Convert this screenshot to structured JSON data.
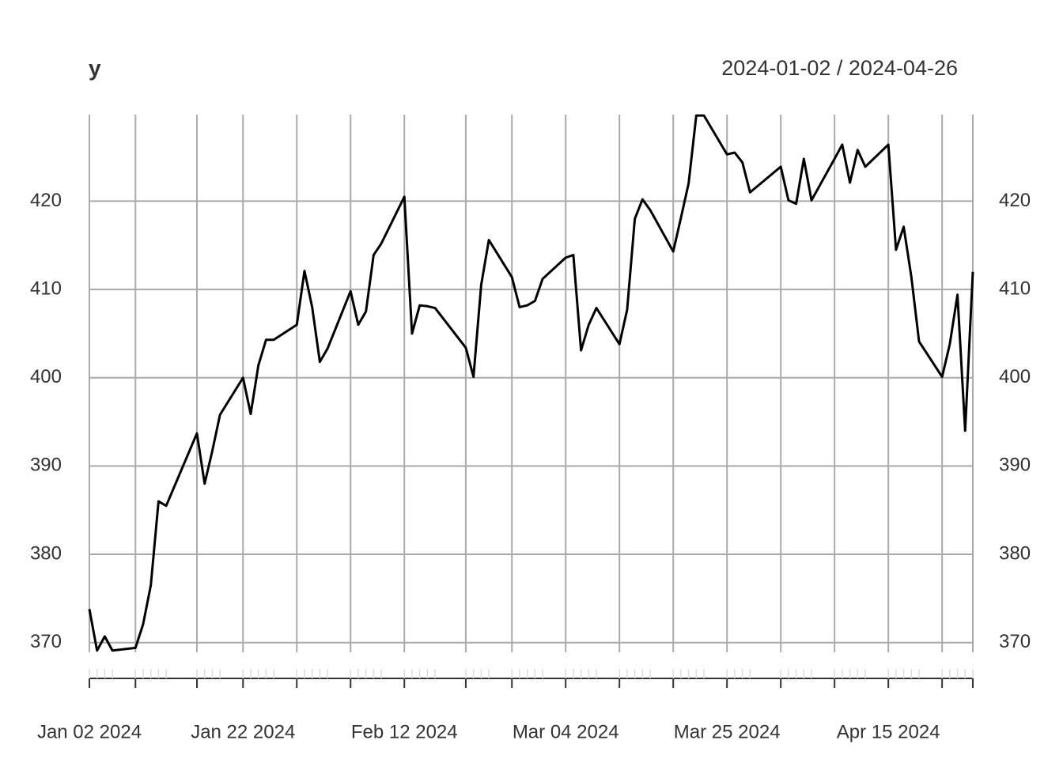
{
  "chart_data": {
    "type": "line",
    "title": "y",
    "subtitle": "2024-01-02 / 2024-04-26",
    "x": [
      "2024-01-02",
      "2024-01-03",
      "2024-01-04",
      "2024-01-05",
      "2024-01-08",
      "2024-01-09",
      "2024-01-10",
      "2024-01-11",
      "2024-01-12",
      "2024-01-16",
      "2024-01-17",
      "2024-01-18",
      "2024-01-19",
      "2024-01-22",
      "2024-01-23",
      "2024-01-24",
      "2024-01-25",
      "2024-01-26",
      "2024-01-29",
      "2024-01-30",
      "2024-01-31",
      "2024-02-01",
      "2024-02-02",
      "2024-02-05",
      "2024-02-06",
      "2024-02-07",
      "2024-02-08",
      "2024-02-09",
      "2024-02-12",
      "2024-02-13",
      "2024-02-14",
      "2024-02-15",
      "2024-02-16",
      "2024-02-20",
      "2024-02-21",
      "2024-02-22",
      "2024-02-23",
      "2024-02-26",
      "2024-02-27",
      "2024-02-28",
      "2024-02-29",
      "2024-03-01",
      "2024-03-04",
      "2024-03-05",
      "2024-03-06",
      "2024-03-07",
      "2024-03-08",
      "2024-03-11",
      "2024-03-12",
      "2024-03-13",
      "2024-03-14",
      "2024-03-15",
      "2024-03-18",
      "2024-03-19",
      "2024-03-20",
      "2024-03-21",
      "2024-03-22",
      "2024-03-25",
      "2024-03-26",
      "2024-03-27",
      "2024-03-28",
      "2024-04-01",
      "2024-04-02",
      "2024-04-03",
      "2024-04-04",
      "2024-04-05",
      "2024-04-08",
      "2024-04-09",
      "2024-04-10",
      "2024-04-11",
      "2024-04-12",
      "2024-04-15",
      "2024-04-16",
      "2024-04-17",
      "2024-04-18",
      "2024-04-19",
      "2024-04-22",
      "2024-04-23",
      "2024-04-24",
      "2024-04-25",
      "2024-04-26"
    ],
    "series": [
      {
        "name": "y",
        "color": "#000000",
        "values": [
          373.8,
          369.1,
          370.7,
          369.1,
          369.4,
          372.1,
          376.5,
          386.0,
          385.5,
          393.7,
          388.0,
          391.7,
          395.8,
          400.0,
          395.9,
          401.4,
          404.3,
          404.3,
          406.0,
          412.1,
          408.0,
          401.8,
          403.3,
          409.8,
          406.0,
          407.5,
          413.9,
          415.2,
          420.5,
          405.0,
          408.2,
          408.1,
          407.9,
          403.4,
          400.1,
          410.5,
          415.6,
          411.4,
          408.0,
          408.2,
          408.7,
          411.2,
          413.6,
          413.9,
          403.1,
          406.0,
          407.9,
          403.8,
          407.7,
          418.0,
          420.2,
          419.0,
          414.3,
          418.1,
          422.0,
          429.7,
          429.7,
          425.3,
          425.5,
          424.4,
          421.0,
          423.9,
          420.1,
          419.7,
          424.8,
          420.1,
          424.8,
          426.4,
          422.1,
          425.8,
          423.9,
          426.4,
          414.5,
          417.1,
          411.4,
          404.1,
          400.1,
          403.8,
          409.4,
          394.0,
          412.0
        ]
      }
    ],
    "xlim": [
      "2024-01-02",
      "2024-04-26"
    ],
    "xticks": [
      {
        "value": "2024-01-02",
        "label": "Jan 02 2024"
      },
      {
        "value": "2024-01-22",
        "label": "Jan 22 2024"
      },
      {
        "value": "2024-02-12",
        "label": "Feb 12 2024"
      },
      {
        "value": "2024-03-04",
        "label": "Mar 04 2024"
      },
      {
        "value": "2024-03-25",
        "label": "Mar 25 2024"
      },
      {
        "value": "2024-04-15",
        "label": "Apr 15 2024"
      }
    ],
    "x_grid": [
      "2024-01-02",
      "2024-01-08",
      "2024-01-16",
      "2024-01-22",
      "2024-01-29",
      "2024-02-05",
      "2024-02-12",
      "2024-02-20",
      "2024-02-26",
      "2024-03-04",
      "2024-03-11",
      "2024-03-18",
      "2024-03-25",
      "2024-04-01",
      "2024-04-08",
      "2024-04-15",
      "2024-04-22",
      "2024-04-26"
    ],
    "ylim": [
      368.9,
      429.8
    ],
    "yticks": [
      370,
      380,
      390,
      400,
      410,
      420
    ],
    "grid": true
  }
}
